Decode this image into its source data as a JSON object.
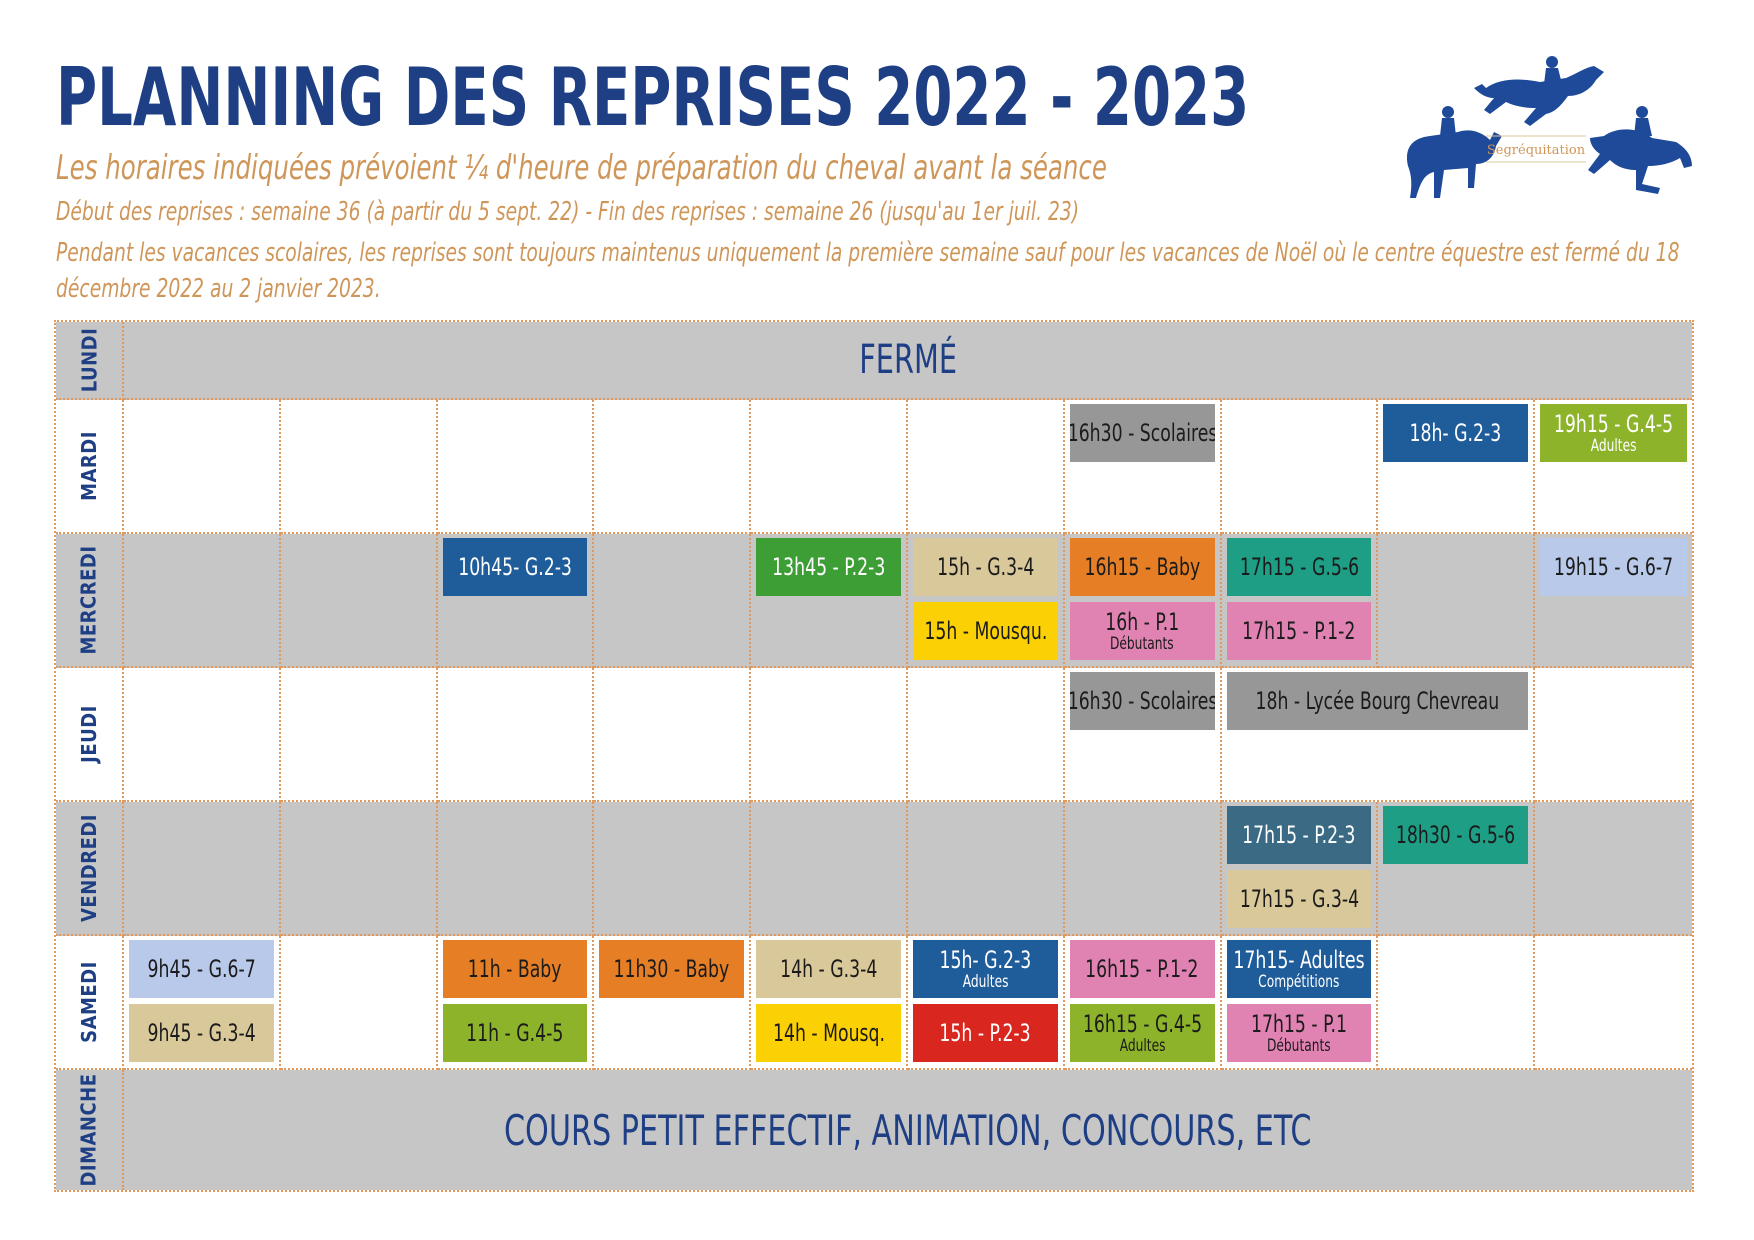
{
  "header": {
    "title": "PLANNING DES REPRISES 2022 - 2023",
    "note_preparation": "Les horaires indiquées prévoient ¼ d'heure de préparation du cheval avant la séance",
    "note_dates": "Début des reprises : semaine 36 (à partir du 5 sept. 22) - Fin des reprises : semaine 26 (jusqu'au 1er juil. 23)",
    "note_holidays": "Pendant les vacances scolaires, les reprises sont toujours maintenus uniquement la première semaine sauf pour les vacances de Noël où le centre équestre est fermé du 18 décembre 2022 au 2 janvier 2023."
  },
  "logo": {
    "text": "Segréquitation"
  },
  "colors": {
    "title": "#1f3f85",
    "notes": "#cf9659",
    "grid_border": "#e0995a",
    "gray_row": "#c6c6c6",
    "lesson_gray": "#979797",
    "blue": "#1f5c9a",
    "green_olive": "#8db32b",
    "green": "#3e9e36",
    "tan": "#d9c89a",
    "orange": "#e57e25",
    "teal": "#1f9e86",
    "light_blue": "#b9c9ea",
    "yellow": "#fbd005",
    "pink": "#e083b2",
    "slate": "#3a6a84",
    "red": "#d9261f"
  },
  "schedule": {
    "lundi": {
      "day": "LUNDI",
      "band": "FERMÉ"
    },
    "mardi": {
      "day": "MARDI",
      "scolaires": {
        "main": "16h30 - Scolaires"
      },
      "g23": {
        "main": "18h- G.2-3"
      },
      "g45": {
        "main": "19h15 - G.4-5",
        "sub": "Adultes"
      }
    },
    "mercredi": {
      "day": "MERCREDI",
      "g23": {
        "main": "10h45- G.2-3"
      },
      "p23": {
        "main": "13h45 - P.2-3"
      },
      "g34": {
        "main": "15h - G.3-4"
      },
      "mousqu": {
        "main": "15h - Mousqu."
      },
      "baby": {
        "main": "16h15 - Baby"
      },
      "p1": {
        "main": "16h - P.1",
        "sub": "Débutants"
      },
      "g56": {
        "main": "17h15 - G.5-6"
      },
      "p12": {
        "main": "17h15 - P.1-2"
      },
      "g67": {
        "main": "19h15 - G.6-7"
      }
    },
    "jeudi": {
      "day": "JEUDI",
      "scolaires": {
        "main": "16h30 - Scolaires"
      },
      "lycee": {
        "main": "18h - Lycée Bourg Chevreau"
      }
    },
    "vendredi": {
      "day": "VENDREDI",
      "p23": {
        "main": "17h15 - P.2-3"
      },
      "g34": {
        "main": "17h15 - G.3-4"
      },
      "g56": {
        "main": "18h30 - G.5-6"
      }
    },
    "samedi": {
      "day": "SAMEDI",
      "g67": {
        "main": "9h45 - G.6-7"
      },
      "g34": {
        "main": "9h45 - G.3-4"
      },
      "baby11": {
        "main": "11h - Baby"
      },
      "g45": {
        "main": "11h - G.4-5"
      },
      "baby1130": {
        "main": "11h30 - Baby"
      },
      "g34_14": {
        "main": "14h - G.3-4"
      },
      "mousq": {
        "main": "14h - Mousq."
      },
      "g23": {
        "main": "15h- G.2-3",
        "sub": "Adultes"
      },
      "p23": {
        "main": "15h - P.2-3"
      },
      "p12": {
        "main": "16h15 - P.1-2"
      },
      "g45_adultes": {
        "main": "16h15 - G.4-5",
        "sub": "Adultes"
      },
      "adultes": {
        "main": "17h15- Adultes",
        "sub": "Compétitions"
      },
      "p1": {
        "main": "17h15 - P.1",
        "sub": "Débutants"
      }
    },
    "dimanche": {
      "day": "DIMANCHE",
      "band": "COURS PETIT EFFECTIF, ANIMATION, CONCOURS, ETC"
    }
  }
}
